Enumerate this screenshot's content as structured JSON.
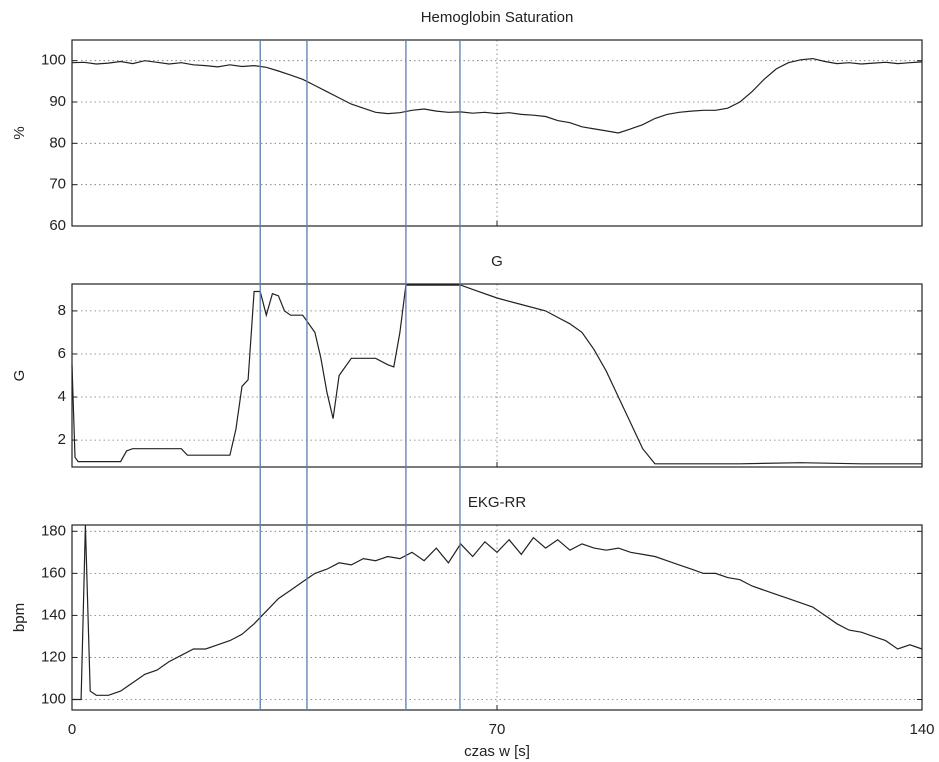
{
  "chart_data": [
    {
      "type": "line",
      "title": "Hemoglobin Saturation",
      "y_label": "%",
      "color": "#222222",
      "xlim": [
        0,
        140
      ],
      "xticks": [
        0,
        70,
        140
      ],
      "ylim": [
        60,
        105
      ],
      "yticks": [
        60,
        70,
        80,
        90,
        100
      ],
      "grid": true,
      "x": [
        0,
        2,
        4,
        6,
        8,
        10,
        12,
        14,
        16,
        18,
        20,
        22,
        24,
        26,
        28,
        30,
        32,
        34,
        36,
        38,
        40,
        42,
        44,
        46,
        48,
        50,
        52,
        54,
        56,
        58,
        60,
        62,
        64,
        66,
        68,
        70,
        72,
        74,
        76,
        78,
        80,
        82,
        84,
        86,
        88,
        90,
        92,
        94,
        96,
        98,
        100,
        102,
        104,
        106,
        108,
        110,
        112,
        114,
        116,
        118,
        120,
        122,
        124,
        126,
        128,
        130,
        132,
        134,
        136,
        138,
        140
      ],
      "values": [
        99.5,
        99.6,
        99.2,
        99.4,
        99.8,
        99.3,
        100,
        99.6,
        99.2,
        99.5,
        99,
        98.8,
        98.5,
        99,
        98.6,
        98.8,
        98.4,
        97.5,
        96.5,
        95.5,
        94,
        92.5,
        91,
        89.5,
        88.5,
        87.5,
        87.2,
        87.4,
        88,
        88.3,
        87.8,
        87.5,
        87.6,
        87.3,
        87.5,
        87.2,
        87.4,
        87,
        86.8,
        86.5,
        85.5,
        85,
        84,
        83.5,
        83,
        82.5,
        83.5,
        84.5,
        86,
        87,
        87.5,
        87.8,
        88,
        88,
        88.5,
        90,
        92.5,
        95.5,
        98,
        99.5,
        100.2,
        100.5,
        99.8,
        99.3,
        99.5,
        99.2,
        99.4,
        99.6,
        99.3,
        99.5,
        99.7
      ]
    },
    {
      "type": "line",
      "title": "G",
      "y_label": "G",
      "color": "#222222",
      "xlim": [
        0,
        140
      ],
      "xticks": [
        0,
        70,
        140
      ],
      "ylim": [
        0.75,
        9.25
      ],
      "yticks": [
        2,
        4,
        6,
        8
      ],
      "grid": true,
      "x": [
        0,
        0.5,
        1,
        4,
        8,
        9,
        10,
        14,
        18,
        19,
        22,
        26,
        27,
        28,
        29,
        30,
        31,
        32,
        33,
        34,
        35,
        36,
        38,
        40,
        41,
        42,
        43,
        44,
        46,
        48,
        50,
        52,
        53,
        54,
        55,
        58,
        60,
        62,
        64,
        66,
        70,
        74,
        78,
        80,
        82,
        84,
        86,
        88,
        90,
        92,
        94,
        96,
        98,
        100,
        110,
        120,
        130,
        140
      ],
      "values": [
        5.5,
        1.2,
        1.0,
        1.0,
        1.0,
        1.5,
        1.6,
        1.6,
        1.6,
        1.3,
        1.3,
        1.3,
        2.5,
        4.5,
        4.8,
        8.9,
        8.9,
        7.8,
        8.8,
        8.7,
        8.0,
        7.8,
        7.8,
        7.0,
        5.8,
        4.2,
        3.0,
        5.0,
        5.8,
        5.8,
        5.8,
        5.5,
        5.4,
        7.0,
        9.2,
        9.2,
        9.2,
        9.2,
        9.2,
        9.0,
        8.6,
        8.3,
        8.0,
        7.7,
        7.4,
        7.0,
        6.2,
        5.2,
        4.0,
        2.8,
        1.6,
        0.9,
        0.9,
        0.9,
        0.9,
        0.95,
        0.9,
        0.9
      ]
    },
    {
      "type": "line",
      "title": "EKG-RR",
      "y_label": "bpm",
      "x_label": "czas w [s]",
      "color": "#222222",
      "xlim": [
        0,
        140
      ],
      "xticks": [
        0,
        70,
        140
      ],
      "ylim": [
        95,
        183
      ],
      "yticks": [
        100,
        120,
        140,
        160,
        180
      ],
      "grid": true,
      "x": [
        0,
        1.5,
        2.2,
        3,
        4,
        6,
        8,
        10,
        12,
        14,
        16,
        18,
        20,
        22,
        24,
        26,
        28,
        30,
        32,
        34,
        36,
        38,
        40,
        42,
        44,
        46,
        48,
        50,
        52,
        54,
        56,
        58,
        60,
        62,
        64,
        66,
        68,
        70,
        72,
        74,
        76,
        78,
        80,
        82,
        84,
        86,
        88,
        90,
        92,
        94,
        96,
        98,
        100,
        102,
        104,
        106,
        108,
        110,
        112,
        114,
        116,
        118,
        120,
        122,
        124,
        126,
        128,
        130,
        132,
        134,
        136,
        138,
        140
      ],
      "values": [
        100,
        100,
        183,
        104,
        102,
        102,
        104,
        108,
        112,
        114,
        118,
        121,
        124,
        124,
        126,
        128,
        131,
        136,
        142,
        148,
        152,
        156,
        160,
        162,
        165,
        164,
        167,
        166,
        168,
        167,
        170,
        166,
        172,
        165,
        174,
        168,
        175,
        170,
        176,
        169,
        177,
        172,
        176,
        171,
        174,
        172,
        171,
        172,
        170,
        169,
        168,
        166,
        164,
        162,
        160,
        160,
        158,
        157,
        154,
        152,
        150,
        148,
        146,
        144,
        140,
        136,
        133,
        132,
        130,
        128,
        124,
        126,
        124
      ]
    }
  ],
  "markers": {
    "x": [
      31,
      38.7,
      55,
      63.9
    ],
    "color": "#5a7fb0"
  }
}
